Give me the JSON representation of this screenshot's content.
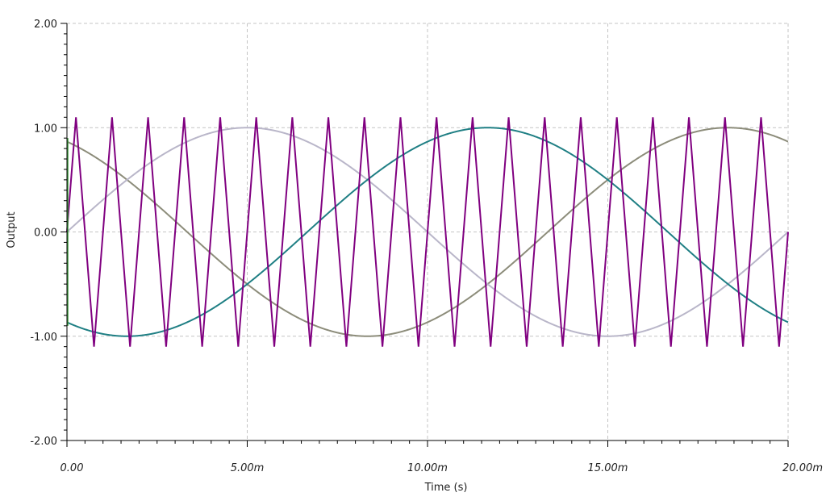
{
  "chart_data": {
    "type": "line",
    "xlabel": "Time (s)",
    "ylabel": "Output",
    "xlim": [
      0,
      0.02
    ],
    "ylim": [
      -2,
      2
    ],
    "x_ticks": [
      0,
      0.005,
      0.01,
      0.015,
      0.02
    ],
    "x_tick_labels": [
      "0.00",
      "5.00m",
      "10.00m",
      "15.00m",
      "20.00m"
    ],
    "y_ticks": [
      2,
      1,
      0,
      -1,
      -2
    ],
    "y_tick_labels": [
      "2.00",
      "1.00",
      "0.00",
      "-1.00",
      "-2.00"
    ],
    "grid": true,
    "series": [
      {
        "color": "#8c8c7a",
        "kind": "sine",
        "amplitude": 1,
        "frequency_hz": 50,
        "phase_deg": 120,
        "values_sampled": {
          "x": [
            0,
            0.0033,
            0.0083,
            0.0133,
            0.0183,
            0.02
          ],
          "y": [
            0.87,
            0.0,
            -1.0,
            0.0,
            1.0,
            0.87
          ]
        }
      },
      {
        "color": "#b9b6c9",
        "kind": "sine",
        "amplitude": 1,
        "frequency_hz": 50,
        "phase_deg": 0,
        "values_sampled": {
          "x": [
            0,
            0.005,
            0.01,
            0.015,
            0.02
          ],
          "y": [
            0.0,
            1.0,
            0.0,
            -1.0,
            0.0
          ]
        }
      },
      {
        "color": "#1f7f84",
        "kind": "sine",
        "amplitude": 1,
        "frequency_hz": 50,
        "phase_deg": -120,
        "values_sampled": {
          "x": [
            0,
            0.0017,
            0.0067,
            0.0117,
            0.0167,
            0.02
          ],
          "y": [
            -0.87,
            -1.0,
            0.0,
            1.0,
            0.0,
            -0.87
          ]
        }
      },
      {
        "color": "#800080",
        "kind": "triangle",
        "amplitude": 1.1,
        "frequency_hz": 1000,
        "start_value": 0,
        "values_sampled": {
          "x": [
            0,
            0.00025,
            0.00075,
            0.00125,
            0.00175,
            0.02
          ],
          "y": [
            0.0,
            1.1,
            -1.1,
            1.1,
            -1.1,
            0.0
          ]
        }
      }
    ]
  }
}
